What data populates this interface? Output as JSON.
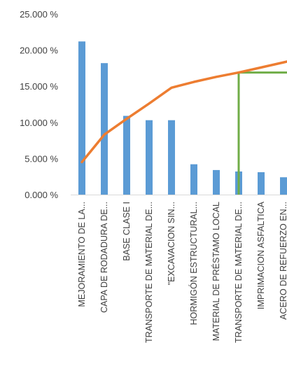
{
  "chart_data": {
    "type": "bar",
    "categories": [
      "MEJORAMIENTO DE LA...",
      "CAPA DE RODADURA DE...",
      "BASE CLASE I",
      "TRANSPORTE DE MATERIAL DE...",
      "\"EXCAVACION SIN...",
      "HORMIGÓN ESTRUCTURAL...",
      "MATERIAL DE PRÉSTAMO LOCAL",
      "TRANSPORTE DE MATERIAL DE...",
      "IMPRIMACION ASFALTICA",
      "ACERO DE REFUERZO EN..."
    ],
    "series": [
      {
        "type": "bar",
        "color": "#5b9bd5",
        "values": [
          21.2,
          18.2,
          10.9,
          10.3,
          10.3,
          4.2,
          3.4,
          3.2,
          3.1,
          2.4
        ]
      },
      {
        "type": "line",
        "color": "#ed7d31",
        "values": [
          4.5,
          8.3,
          10.5,
          12.6,
          14.8,
          15.6,
          16.3,
          16.9,
          17.6,
          18.3
        ]
      }
    ],
    "marker": {
      "color": "#70ad47",
      "category_index": 7,
      "y": 16.9
    },
    "yaxis": {
      "min": 0,
      "max": 25,
      "step": 5,
      "tick_labels": [
        "0.000 %",
        "5.000 %",
        "10.000 %",
        "15.000 %",
        "20.000 %",
        "25.000 %"
      ]
    },
    "grid": false,
    "legend": "none"
  }
}
